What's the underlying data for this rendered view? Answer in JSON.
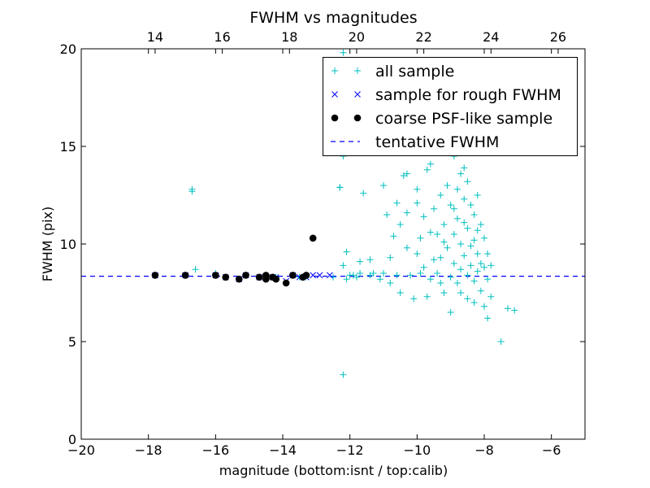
{
  "chart_data": {
    "type": "scatter",
    "title": "FWHM vs magnitudes",
    "xlabel": "magnitude (bottom:isnt / top:calib)",
    "ylabel": "FWHM (pix)",
    "xlim": [
      -20,
      -5
    ],
    "ylim": [
      0,
      20
    ],
    "x_ticks": [
      "−20",
      "−18",
      "−16",
      "−14",
      "−12",
      "−10",
      "−8",
      "−6"
    ],
    "x_tick_values": [
      -20,
      -18,
      -16,
      -14,
      -12,
      -10,
      -8,
      -6
    ],
    "y_ticks": [
      "0",
      "5",
      "10",
      "15",
      "20"
    ],
    "y_tick_values": [
      0,
      5,
      10,
      15,
      20
    ],
    "top_ticks": [
      "14",
      "16",
      "18",
      "20",
      "22",
      "24",
      "26"
    ],
    "top_tick_positions": [
      -17.8,
      -15.8,
      -13.8,
      -11.8,
      -9.8,
      -7.8,
      -5.8
    ],
    "legend_position": "top-right",
    "series": [
      {
        "name": "all sample",
        "marker": "plus",
        "color": "#00bfbf",
        "points": [
          [
            -17.8,
            8.4
          ],
          [
            -16.9,
            8.4
          ],
          [
            -16.7,
            12.7
          ],
          [
            -16.7,
            12.8
          ],
          [
            -16.6,
            8.7
          ],
          [
            -16.0,
            8.5
          ],
          [
            -15.7,
            8.3
          ],
          [
            -15.3,
            8.2
          ],
          [
            -15.1,
            8.4
          ],
          [
            -14.7,
            8.3
          ],
          [
            -14.5,
            8.2
          ],
          [
            -14.2,
            8.3
          ],
          [
            -13.9,
            8.0
          ],
          [
            -13.7,
            8.4
          ],
          [
            -13.5,
            8.3
          ],
          [
            -13.3,
            8.3
          ],
          [
            -13.1,
            10.3
          ],
          [
            -12.5,
            8.3
          ],
          [
            -12.3,
            12.9
          ],
          [
            -12.3,
            12.9
          ],
          [
            -12.2,
            19.8
          ],
          [
            -12.2,
            14.5
          ],
          [
            -12.2,
            8.9
          ],
          [
            -12.1,
            9.6
          ],
          [
            -12.1,
            8.2
          ],
          [
            -12.0,
            8.4
          ],
          [
            -11.9,
            8.4
          ],
          [
            -11.8,
            8.3
          ],
          [
            -11.7,
            9.1
          ],
          [
            -11.7,
            8.5
          ],
          [
            -11.6,
            12.6
          ],
          [
            -11.5,
            16.5
          ],
          [
            -11.4,
            8.4
          ],
          [
            -11.3,
            8.5
          ],
          [
            -11.1,
            8.2
          ],
          [
            -11.0,
            13.0
          ],
          [
            -11.0,
            8.5
          ],
          [
            -10.9,
            11.5
          ],
          [
            -10.8,
            8.0
          ],
          [
            -10.8,
            9.3
          ],
          [
            -10.6,
            12.1
          ],
          [
            -10.6,
            8.4
          ],
          [
            -10.5,
            7.5
          ],
          [
            -10.5,
            11.0
          ],
          [
            -10.4,
            13.5
          ],
          [
            -10.3,
            13.6
          ],
          [
            -10.3,
            9.8
          ],
          [
            -10.3,
            11.6
          ],
          [
            -10.2,
            8.4
          ],
          [
            -10.1,
            7.2
          ],
          [
            -10.0,
            9.5
          ],
          [
            -10.0,
            12.8
          ],
          [
            -10.0,
            12.1
          ],
          [
            -9.9,
            10.3
          ],
          [
            -9.9,
            8.5
          ],
          [
            -9.8,
            11.4
          ],
          [
            -9.8,
            8.8
          ],
          [
            -9.7,
            13.8
          ],
          [
            -9.7,
            7.3
          ],
          [
            -9.6,
            8.2
          ],
          [
            -9.6,
            14.1
          ],
          [
            -9.5,
            11.8
          ],
          [
            -9.5,
            9.2
          ],
          [
            -9.4,
            10.5
          ],
          [
            -9.4,
            8.5
          ],
          [
            -9.3,
            12.5
          ],
          [
            -9.3,
            8.0
          ],
          [
            -9.2,
            11.0
          ],
          [
            -9.2,
            7.5
          ],
          [
            -9.1,
            13.0
          ],
          [
            -9.1,
            9.8
          ],
          [
            -9.0,
            12.0
          ],
          [
            -9.0,
            8.3
          ],
          [
            -9.0,
            6.5
          ],
          [
            -8.9,
            14.5
          ],
          [
            -8.9,
            10.5
          ],
          [
            -8.9,
            9.0
          ],
          [
            -8.8,
            12.8
          ],
          [
            -8.8,
            11.3
          ],
          [
            -8.8,
            8.0
          ],
          [
            -8.7,
            13.6
          ],
          [
            -8.7,
            10.0
          ],
          [
            -8.7,
            8.7
          ],
          [
            -8.7,
            7.5
          ],
          [
            -8.6,
            12.3
          ],
          [
            -8.6,
            11.1
          ],
          [
            -8.6,
            9.4
          ],
          [
            -8.5,
            13.2
          ],
          [
            -8.5,
            10.8
          ],
          [
            -8.5,
            8.4
          ],
          [
            -8.5,
            7.2
          ],
          [
            -8.4,
            12.0
          ],
          [
            -8.4,
            9.9
          ],
          [
            -8.4,
            8.9
          ],
          [
            -8.3,
            11.5
          ],
          [
            -8.3,
            10.2
          ],
          [
            -8.3,
            8.1
          ],
          [
            -8.3,
            7.0
          ],
          [
            -8.2,
            12.5
          ],
          [
            -8.2,
            9.5
          ],
          [
            -8.2,
            8.6
          ],
          [
            -8.1,
            11.0
          ],
          [
            -8.1,
            9.0
          ],
          [
            -8.1,
            7.6
          ],
          [
            -8.0,
            10.3
          ],
          [
            -8.0,
            8.8
          ],
          [
            -8.0,
            6.8
          ],
          [
            -7.9,
            9.5
          ],
          [
            -7.9,
            8.2
          ],
          [
            -7.9,
            6.2
          ],
          [
            -7.8,
            8.9
          ],
          [
            -7.8,
            7.3
          ],
          [
            -7.5,
            5.0
          ],
          [
            -7.3,
            6.7
          ],
          [
            -7.1,
            6.6
          ],
          [
            -12.2,
            3.3
          ],
          [
            -9.2,
            10.1
          ],
          [
            -8.9,
            11.8
          ],
          [
            -8.6,
            13.9
          ],
          [
            -8.4,
            14.8
          ],
          [
            -8.2,
            10.7
          ],
          [
            -9.3,
            9.3
          ],
          [
            -9.6,
            10.6
          ],
          [
            -10.7,
            10.4
          ],
          [
            -11.4,
            9.2
          ]
        ]
      },
      {
        "name": "sample for rough FWHM",
        "marker": "x",
        "color": "#0000ff",
        "points": [
          [
            -17.8,
            8.4
          ],
          [
            -16.9,
            8.4
          ],
          [
            -16.0,
            8.4
          ],
          [
            -15.7,
            8.3
          ],
          [
            -15.3,
            8.2
          ],
          [
            -15.1,
            8.4
          ],
          [
            -14.7,
            8.3
          ],
          [
            -14.5,
            8.3
          ],
          [
            -14.3,
            8.3
          ],
          [
            -14.2,
            8.3
          ],
          [
            -13.9,
            8.1
          ],
          [
            -13.7,
            8.4
          ],
          [
            -13.5,
            8.3
          ],
          [
            -13.3,
            8.3
          ],
          [
            -13.1,
            8.4
          ],
          [
            -12.9,
            8.4
          ],
          [
            -12.6,
            8.4
          ]
        ]
      },
      {
        "name": "coarse PSF-like sample",
        "marker": "circle",
        "color": "#000000",
        "points": [
          [
            -17.8,
            8.4
          ],
          [
            -16.9,
            8.4
          ],
          [
            -16.0,
            8.4
          ],
          [
            -15.7,
            8.3
          ],
          [
            -15.3,
            8.2
          ],
          [
            -15.1,
            8.4
          ],
          [
            -14.7,
            8.3
          ],
          [
            -14.5,
            8.2
          ],
          [
            -14.5,
            8.4
          ],
          [
            -14.3,
            8.3
          ],
          [
            -14.2,
            8.2
          ],
          [
            -13.9,
            8.0
          ],
          [
            -13.7,
            8.4
          ],
          [
            -13.4,
            8.3
          ],
          [
            -13.3,
            8.4
          ],
          [
            -13.1,
            10.3
          ]
        ]
      },
      {
        "name": "tentative FWHM",
        "marker": "dashed-line",
        "color": "#0000ff",
        "value": 8.35
      }
    ]
  }
}
